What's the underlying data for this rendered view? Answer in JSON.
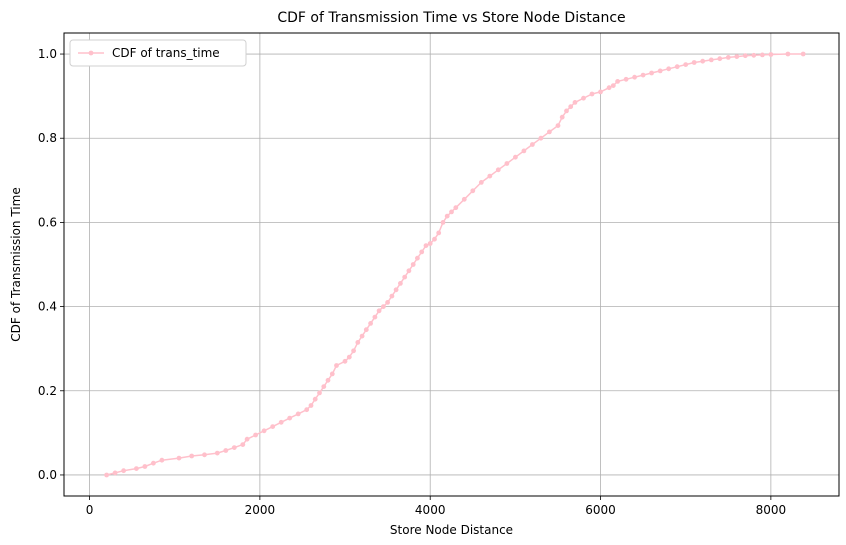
{
  "chart_data": {
    "type": "line",
    "title": "CDF of Transmission Time vs Store Node Distance",
    "xlabel": "Store Node Distance",
    "ylabel": "CDF of Transmission Time",
    "xlim": [
      -300,
      8800
    ],
    "ylim": [
      -0.05,
      1.05
    ],
    "xticks": [
      0,
      2000,
      4000,
      6000,
      8000
    ],
    "yticks": [
      0.0,
      0.2,
      0.4,
      0.6,
      0.8,
      1.0
    ],
    "xtick_labels": [
      "0",
      "2000",
      "4000",
      "6000",
      "8000"
    ],
    "ytick_labels": [
      "0.0",
      "0.2",
      "0.4",
      "0.6",
      "0.8",
      "1.0"
    ],
    "grid": true,
    "legend_position": "top-left",
    "series": [
      {
        "name": "CDF of trans_time",
        "color": "#ffc0cb",
        "marker": "circle",
        "x": [
          200,
          300,
          400,
          550,
          650,
          750,
          850,
          1050,
          1200,
          1350,
          1500,
          1600,
          1700,
          1800,
          1850,
          1950,
          2050,
          2150,
          2250,
          2350,
          2450,
          2550,
          2600,
          2650,
          2700,
          2750,
          2800,
          2850,
          2900,
          3000,
          3050,
          3100,
          3150,
          3200,
          3250,
          3300,
          3350,
          3400,
          3450,
          3500,
          3550,
          3600,
          3650,
          3700,
          3750,
          3800,
          3850,
          3900,
          3950,
          4000,
          4050,
          4100,
          4150,
          4200,
          4250,
          4300,
          4400,
          4500,
          4600,
          4700,
          4800,
          4900,
          5000,
          5100,
          5200,
          5300,
          5400,
          5500,
          5550,
          5600,
          5650,
          5700,
          5800,
          5900,
          6000,
          6100,
          6150,
          6200,
          6300,
          6400,
          6500,
          6600,
          6700,
          6800,
          6900,
          7000,
          7100,
          7200,
          7300,
          7400,
          7500,
          7600,
          7700,
          7800,
          7900,
          8000,
          8200,
          8380
        ],
        "y": [
          0.0,
          0.005,
          0.01,
          0.015,
          0.02,
          0.028,
          0.035,
          0.04,
          0.045,
          0.048,
          0.052,
          0.058,
          0.065,
          0.072,
          0.085,
          0.095,
          0.105,
          0.115,
          0.125,
          0.135,
          0.145,
          0.155,
          0.165,
          0.18,
          0.195,
          0.21,
          0.225,
          0.24,
          0.26,
          0.27,
          0.28,
          0.295,
          0.315,
          0.33,
          0.345,
          0.36,
          0.375,
          0.39,
          0.4,
          0.41,
          0.425,
          0.44,
          0.455,
          0.47,
          0.485,
          0.5,
          0.515,
          0.53,
          0.545,
          0.55,
          0.56,
          0.575,
          0.6,
          0.615,
          0.625,
          0.635,
          0.655,
          0.675,
          0.695,
          0.71,
          0.725,
          0.74,
          0.755,
          0.77,
          0.785,
          0.8,
          0.815,
          0.83,
          0.85,
          0.865,
          0.875,
          0.885,
          0.895,
          0.905,
          0.91,
          0.92,
          0.925,
          0.935,
          0.94,
          0.945,
          0.95,
          0.955,
          0.96,
          0.965,
          0.97,
          0.975,
          0.98,
          0.983,
          0.986,
          0.989,
          0.992,
          0.994,
          0.996,
          0.997,
          0.998,
          0.999,
          1.0,
          1.0
        ]
      }
    ]
  }
}
